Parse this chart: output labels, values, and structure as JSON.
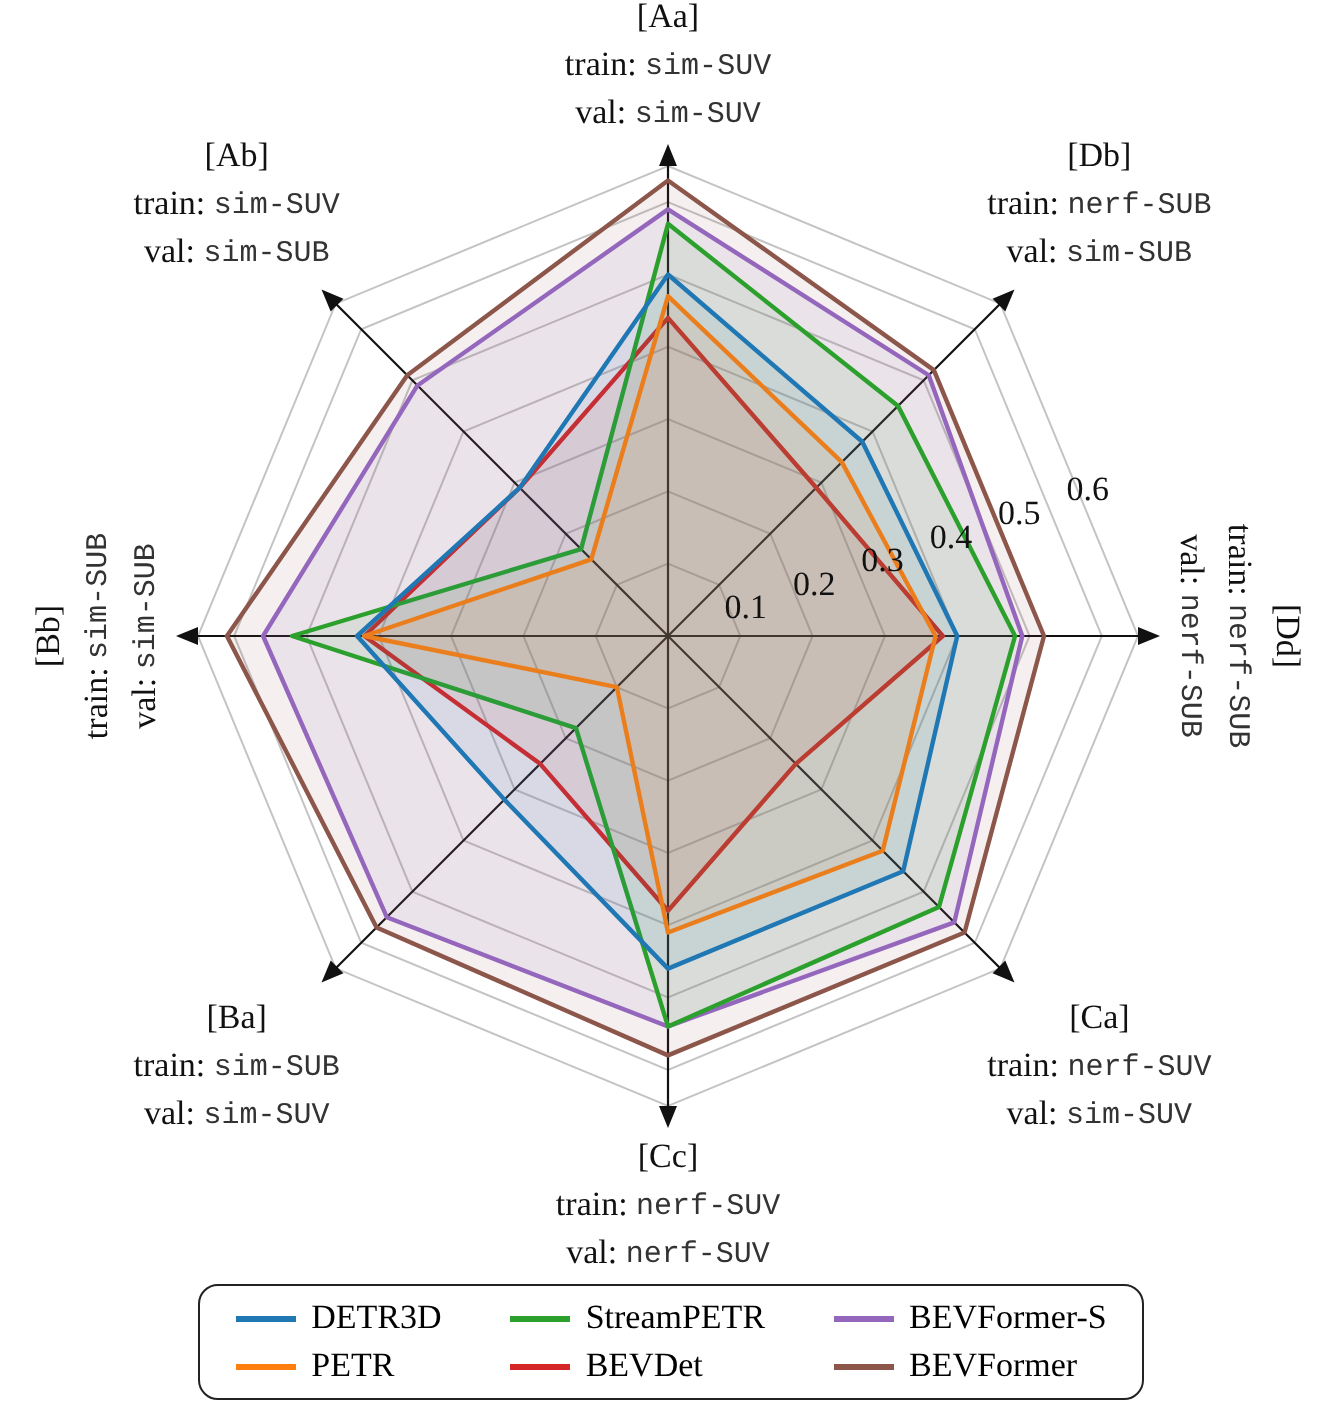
{
  "chart_data": {
    "type": "radar",
    "categories": [
      "[Aa]\ntrain: sim-SUV\nval: sim-SUV",
      "[Db]\ntrain: nerf-SUB\nval: sim-SUB",
      "[Dd]\ntrain: nerf-SUB\nval: nerf-SUB",
      "[Ca]\ntrain: nerf-SUV\nval: sim-SUV",
      "[Cc]\ntrain: nerf-SUV\nval: nerf-SUV",
      "[Ba]\ntrain: sim-SUB\nval: sim-SUV",
      "[Bb]\ntrain: sim-SUB\nval: sim-SUB",
      "[Ab]\ntrain: sim-SUV\nval: sim-SUB"
    ],
    "series": [
      {
        "name": "DETR3D",
        "color": "#1f77b4",
        "values": [
          0.5,
          0.38,
          0.4,
          0.46,
          0.46,
          0.32,
          0.43,
          0.29
        ]
      },
      {
        "name": "PETR",
        "color": "#ff7f0e",
        "values": [
          0.47,
          0.34,
          0.37,
          0.42,
          0.41,
          0.1,
          0.42,
          0.15
        ]
      },
      {
        "name": "StreamPETR",
        "color": "#2ca02c",
        "values": [
          0.57,
          0.45,
          0.48,
          0.53,
          0.54,
          0.18,
          0.52,
          0.17
        ]
      },
      {
        "name": "BEVDet",
        "color": "#d62728",
        "values": [
          0.44,
          0.29,
          0.38,
          0.25,
          0.38,
          0.25,
          0.42,
          0.29
        ]
      },
      {
        "name": "BEVFormer-S",
        "color": "#9467bd",
        "values": [
          0.59,
          0.51,
          0.49,
          0.56,
          0.54,
          0.55,
          0.56,
          0.49
        ]
      },
      {
        "name": "BEVFormer",
        "color": "#8c564b",
        "values": [
          0.63,
          0.52,
          0.52,
          0.58,
          0.58,
          0.57,
          0.61,
          0.51
        ]
      }
    ],
    "ylim": [
      0,
      0.65
    ],
    "yticks": [
      0.1,
      0.2,
      0.3,
      0.4,
      0.5,
      0.6
    ],
    "grid": true,
    "legend": "bottom"
  }
}
